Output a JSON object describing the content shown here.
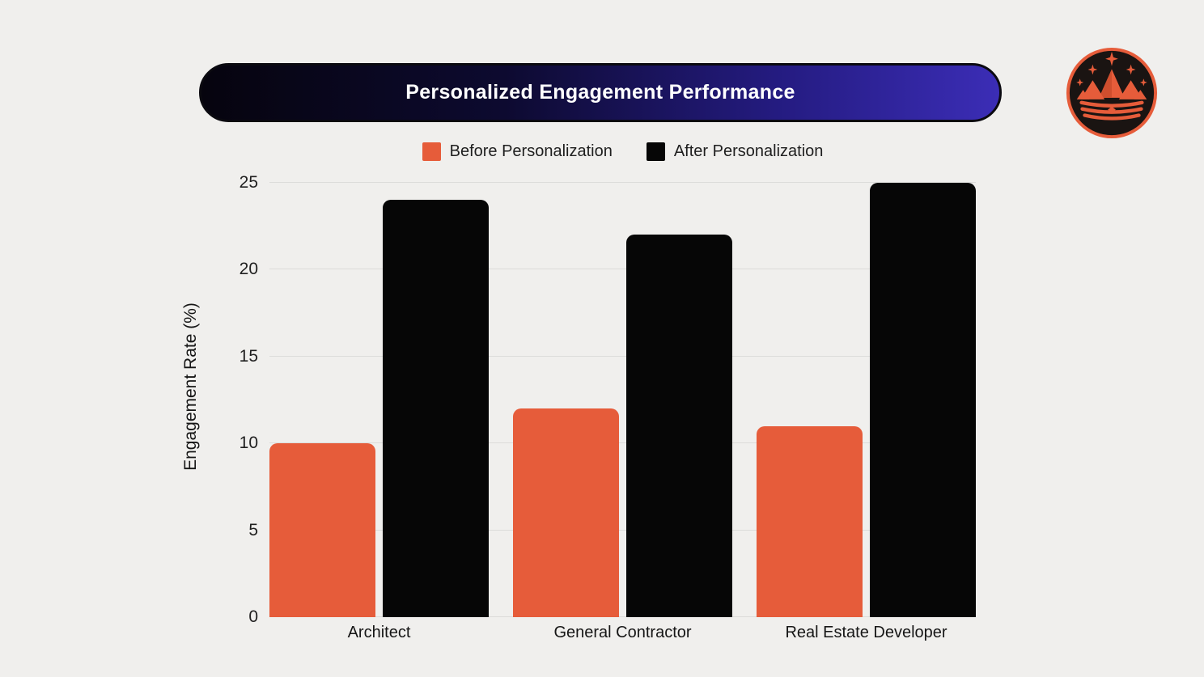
{
  "header": {
    "title": "Personalized Engagement Performance"
  },
  "logo": {
    "icon": "crown-mountains-icon"
  },
  "colors": {
    "background": "#f0efed",
    "accent_orange": "#e65c3a",
    "bar_black": "#060606",
    "gridline": "#dcdcda",
    "text": "#1f1f1f",
    "header_gradient_left": "#06040e",
    "header_gradient_right": "#3b2db6",
    "logo_ring": "#e65c3a",
    "logo_background": "#1a1412"
  },
  "chart_data": {
    "type": "bar",
    "title": "Personalized Engagement Performance",
    "categories": [
      "Architect",
      "General Contractor",
      "Real Estate Developer"
    ],
    "series": [
      {
        "name": "Before Personalization",
        "color": "#e65c3a",
        "values": [
          10,
          12,
          11
        ]
      },
      {
        "name": "After Personalization",
        "color": "#060606",
        "values": [
          24,
          22,
          25
        ]
      }
    ],
    "xlabel": "",
    "ylabel": "Engagement Rate (%)",
    "ylim": [
      0,
      25
    ],
    "yticks": [
      0,
      5,
      10,
      15,
      20,
      25
    ],
    "grid": "horizontal",
    "legend_position": "top"
  }
}
